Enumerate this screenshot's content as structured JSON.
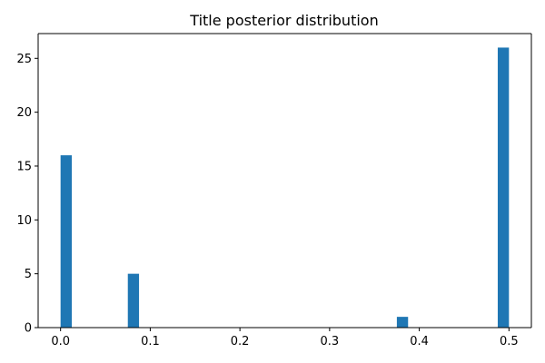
{
  "chart_data": {
    "type": "bar",
    "title": "Title posterior distribution",
    "xlabel": "",
    "ylabel": "",
    "bin_width": 0.0125,
    "bins": [
      {
        "x0": 0.0,
        "value": 16
      },
      {
        "x0": 0.075,
        "value": 5
      },
      {
        "x0": 0.375,
        "value": 1
      },
      {
        "x0": 0.4875,
        "value": 26
      }
    ],
    "xlim": [
      -0.025,
      0.525
    ],
    "ylim": [
      0,
      27.3
    ],
    "xticks": [
      0.0,
      0.1,
      0.2,
      0.3,
      0.4,
      0.5
    ],
    "xtick_labels": [
      "0.0",
      "0.1",
      "0.2",
      "0.3",
      "0.4",
      "0.5"
    ],
    "yticks": [
      0,
      5,
      10,
      15,
      20,
      25
    ],
    "ytick_labels": [
      "0",
      "5",
      "10",
      "15",
      "20",
      "25"
    ],
    "bar_color": "#1f77b4",
    "grid": false,
    "legend": "none"
  }
}
